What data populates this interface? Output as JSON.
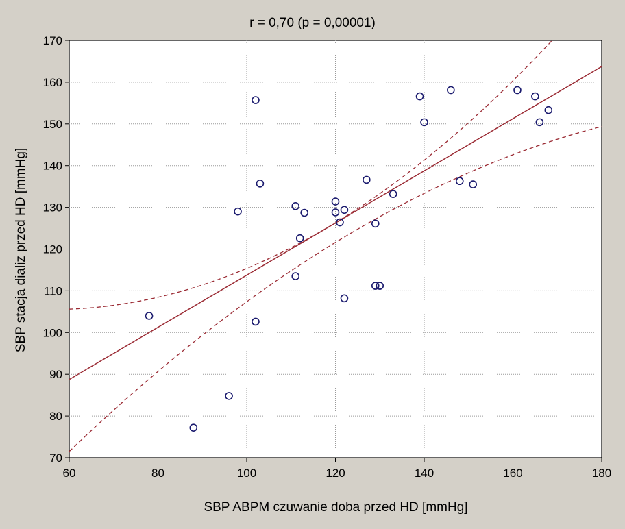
{
  "chart_data": {
    "type": "scatter",
    "title": "r = 0,70 (p = 0,00001)",
    "xlabel": "SBP ABPM czuwanie doba przed HD [mmHg]",
    "ylabel": "SBP stacja dializ przed HD [mmHg]",
    "xlim": [
      60,
      180
    ],
    "ylim": [
      70,
      170
    ],
    "xticks": [
      "60",
      "80",
      "100",
      "120",
      "140",
      "160",
      "180"
    ],
    "yticks": [
      "70",
      "80",
      "90",
      "100",
      "110",
      "120",
      "130",
      "140",
      "150",
      "160",
      "170"
    ],
    "grid": true,
    "colors": {
      "background": "#d4d0c8",
      "plot_area": "#ffffff",
      "points": "#1a1a6e",
      "regression": "#9b2b34"
    },
    "points": [
      [
        78,
        104
      ],
      [
        88,
        77.2
      ],
      [
        96,
        84.8
      ],
      [
        98,
        129
      ],
      [
        102,
        155.7
      ],
      [
        102,
        102.6
      ],
      [
        103,
        135.7
      ],
      [
        111,
        130.3
      ],
      [
        111,
        113.5
      ],
      [
        112,
        122.6
      ],
      [
        113,
        128.7
      ],
      [
        120,
        131.4
      ],
      [
        120,
        128.8
      ],
      [
        121,
        126.4
      ],
      [
        122,
        129.4
      ],
      [
        122,
        108.2
      ],
      [
        127,
        136.6
      ],
      [
        129,
        126.1
      ],
      [
        129,
        111.2
      ],
      [
        130,
        111.2
      ],
      [
        133,
        133.2
      ],
      [
        139,
        156.6
      ],
      [
        140,
        150.4
      ],
      [
        146,
        158.1
      ],
      [
        148,
        136.3
      ],
      [
        151,
        135.5
      ],
      [
        161,
        158.1
      ],
      [
        165,
        156.6
      ],
      [
        166,
        150.4
      ],
      [
        168,
        153.3
      ]
    ],
    "regression": {
      "slope": 0.625,
      "intercept": 51.25
    },
    "confidence_band": {
      "upper": [
        [
          60,
          105.6
        ],
        [
          120,
          126.3
        ],
        [
          180,
          183.4
        ]
      ],
      "lower": [
        [
          60,
          71.5
        ],
        [
          120,
          121.6
        ],
        [
          180,
          149.4
        ]
      ]
    }
  }
}
